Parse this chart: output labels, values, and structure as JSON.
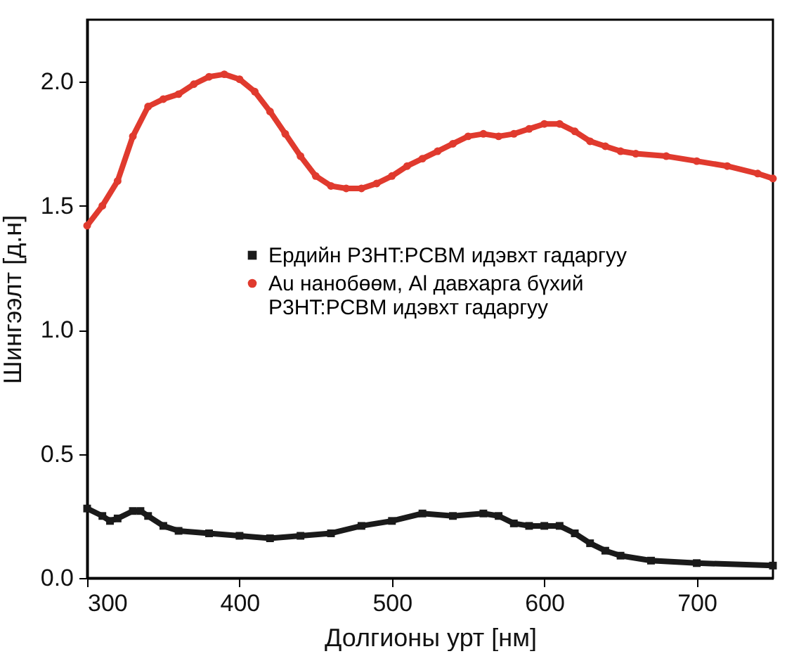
{
  "chart_data": {
    "type": "line",
    "xlabel": "Долгионы урт [нм]",
    "ylabel": "Шингээлт [д.н]",
    "xlim": [
      300,
      750
    ],
    "ylim": [
      0,
      2.25
    ],
    "xticks": [
      300,
      400,
      500,
      600,
      700
    ],
    "yticks": [
      {
        "value": 0,
        "label": "0.0"
      },
      {
        "value": 0.5,
        "label": "0.5"
      },
      {
        "value": 1,
        "label": "1.0"
      },
      {
        "value": 1.5,
        "label": "1.5"
      },
      {
        "value": 2,
        "label": "2.0"
      }
    ],
    "legend": "top right",
    "grid": false,
    "series": [
      {
        "name": "Ердийн P3HT:PCBM идэвхт гадаргуу",
        "color": "#1a1a1a",
        "marker": "square",
        "x": [
          300,
          310,
          315,
          320,
          330,
          335,
          340,
          350,
          360,
          380,
          400,
          420,
          440,
          460,
          480,
          500,
          520,
          540,
          560,
          570,
          580,
          590,
          600,
          610,
          620,
          630,
          640,
          650,
          670,
          700,
          750
        ],
        "values": [
          0.28,
          0.25,
          0.23,
          0.24,
          0.27,
          0.27,
          0.25,
          0.21,
          0.19,
          0.18,
          0.17,
          0.16,
          0.17,
          0.18,
          0.21,
          0.23,
          0.26,
          0.25,
          0.26,
          0.25,
          0.22,
          0.21,
          0.21,
          0.21,
          0.18,
          0.14,
          0.11,
          0.09,
          0.07,
          0.06,
          0.05
        ]
      },
      {
        "name": "Au нанобөөм, Al давхарга бүхий P3HT:PCBM идэвхт гадаргуу",
        "color": "#e03a2e",
        "marker": "circle",
        "x": [
          300,
          310,
          320,
          330,
          340,
          350,
          360,
          370,
          380,
          390,
          400,
          410,
          420,
          430,
          440,
          450,
          460,
          470,
          480,
          490,
          500,
          510,
          520,
          530,
          540,
          550,
          560,
          570,
          580,
          590,
          600,
          610,
          620,
          630,
          640,
          650,
          660,
          680,
          700,
          720,
          740,
          750
        ],
        "values": [
          1.42,
          1.5,
          1.6,
          1.78,
          1.9,
          1.93,
          1.95,
          1.99,
          2.02,
          2.03,
          2.01,
          1.96,
          1.88,
          1.79,
          1.7,
          1.62,
          1.58,
          1.57,
          1.57,
          1.59,
          1.62,
          1.66,
          1.69,
          1.72,
          1.75,
          1.78,
          1.79,
          1.78,
          1.79,
          1.81,
          1.83,
          1.83,
          1.8,
          1.76,
          1.74,
          1.72,
          1.71,
          1.7,
          1.68,
          1.66,
          1.63,
          1.61
        ]
      }
    ]
  }
}
